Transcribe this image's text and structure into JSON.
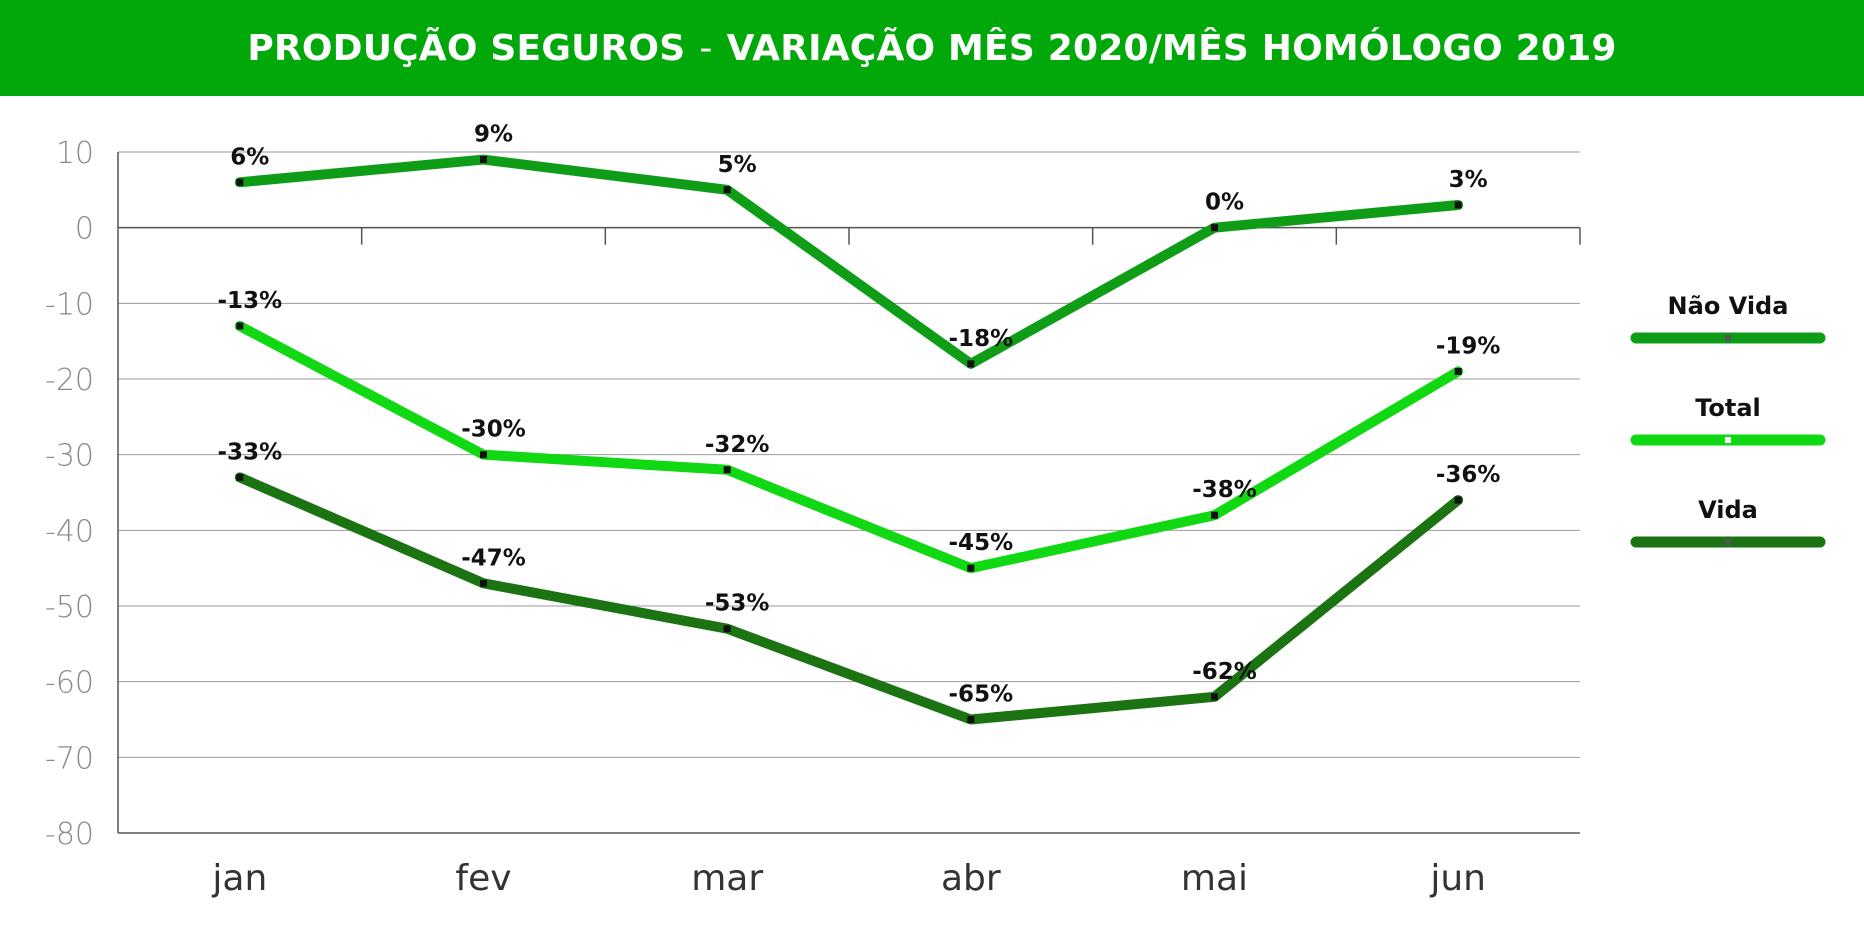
{
  "header": {
    "title_main": "PRODUÇÃO SEGUROS",
    "title_sep": "-",
    "title_rest": "VARIAÇÃO MÊS 2020/MÊS HOMÓLOGO 2019",
    "background_color": "#00a80a"
  },
  "chart_data": {
    "type": "line",
    "categories": [
      "jan",
      "fev",
      "mar",
      "abr",
      "mai",
      "jun"
    ],
    "ylim": [
      -80,
      10
    ],
    "yticks": [
      10,
      0,
      -10,
      -20,
      -30,
      -40,
      -50,
      -60,
      -70,
      -80
    ],
    "grid": true,
    "legend_position": "right",
    "series": [
      {
        "name": "Não Vida",
        "color": "#0f9d18",
        "values": [
          6,
          9,
          5,
          -18,
          0,
          3
        ],
        "labels": [
          "6%",
          "9%",
          "5%",
          "-18%",
          "0%",
          "3%"
        ]
      },
      {
        "name": "Total",
        "color": "#10d812",
        "values": [
          -13,
          -30,
          -32,
          -45,
          -38,
          -19
        ],
        "labels": [
          "-13%",
          "-30%",
          "-32%",
          "-45%",
          "-38%",
          "-19%"
        ]
      },
      {
        "name": "Vida",
        "color": "#1b7312",
        "values": [
          -33,
          -47,
          -53,
          -65,
          -62,
          -36
        ],
        "labels": [
          "-33%",
          "-47%",
          "-53%",
          "-65%",
          "-62%",
          "-36%"
        ]
      }
    ]
  }
}
